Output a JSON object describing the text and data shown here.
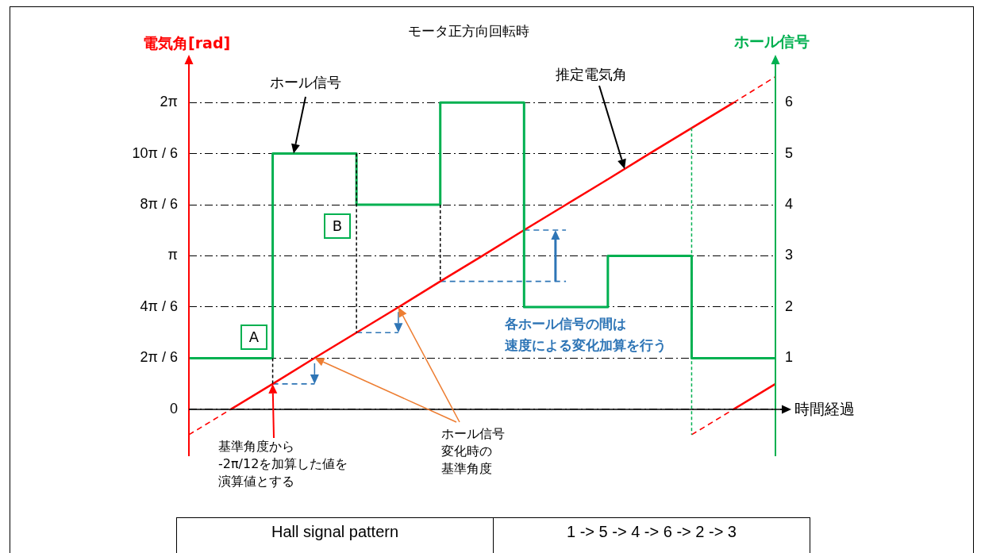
{
  "chart_data": {
    "type": "line",
    "title": "モータ正方向回転時",
    "xlabel": "時間経過",
    "ylabel": "電気角[rad]",
    "y2label": "ホール信号",
    "categories": [
      null,
      null,
      null,
      null,
      null,
      null,
      null,
      null,
      null,
      null,
      null,
      null,
      null,
      null,
      null
    ],
    "ylim": [
      -0.96,
      7.0
    ],
    "yticks": [
      0,
      {
        "value": 1.0472,
        "label": "2π / 6"
      },
      {
        "value": 2.0944,
        "label": "4π / 6"
      },
      {
        "value": 3.1416,
        "label": "π"
      },
      {
        "value": 4.1888,
        "label": "8π / 6"
      },
      {
        "value": 5.236,
        "label": "10π / 6"
      },
      {
        "value": 6.2832,
        "label": "2π"
      }
    ],
    "y2lim": [
      -0.917,
      6.685
    ],
    "y2ticks": [
      1,
      2,
      3,
      4,
      5,
      6
    ],
    "grid": "y",
    "tick_labels": "y",
    "series": [
      {
        "type": "step",
        "axis": "y2",
        "color": "#00b050",
        "values": [
          1,
          1,
          5,
          5,
          4,
          4,
          6,
          6,
          2,
          2,
          3,
          3,
          1,
          1,
          1
        ]
      },
      {
        "color": "#ff0000",
        "line_style": "solid",
        "values": [
          null,
          0,
          0.52,
          1.05,
          1.57,
          2.09,
          2.62,
          3.14,
          3.67,
          4.19,
          4.71,
          5.24,
          5.76,
          6.28,
          null
        ]
      },
      {
        "color": "#ff0000",
        "line_style": "dashed",
        "values": [
          -0.52,
          0,
          null,
          null,
          null,
          null,
          null,
          null,
          null,
          null,
          null,
          null,
          null,
          null,
          null
        ]
      },
      {
        "color": "#ff0000",
        "line_style": "dashed",
        "values": [
          null,
          null,
          null,
          null,
          null,
          null,
          null,
          null,
          null,
          null,
          null,
          null,
          null,
          6.28,
          6.81
        ]
      },
      {
        "color": "#ff0000",
        "line_style": "dashed",
        "values": [
          null,
          null,
          null,
          null,
          null,
          null,
          null,
          null,
          null,
          null,
          null,
          null,
          -0.52,
          0,
          null
        ]
      },
      {
        "color": "#ff0000",
        "line_style": "solid",
        "values": [
          null,
          null,
          null,
          null,
          null,
          null,
          null,
          null,
          null,
          null,
          null,
          null,
          null,
          0,
          0.52
        ]
      },
      {
        "color": "#2e75b6",
        "line_style": "dashed",
        "values": [
          null,
          null,
          0.52,
          0.52,
          null,
          null,
          null,
          null,
          null,
          null,
          null,
          null,
          null,
          null,
          null
        ]
      },
      {
        "color": "#2e75b6",
        "line_style": "dashed",
        "values": [
          null,
          null,
          null,
          null,
          1.57,
          1.57,
          null,
          null,
          null,
          null,
          null,
          null,
          null,
          null,
          null
        ]
      },
      {
        "color": "#2e75b6",
        "line_style": "dashed",
        "values": [
          null,
          null,
          null,
          null,
          null,
          null,
          2.62,
          2.62,
          2.62,
          2.62,
          null,
          null,
          null,
          null,
          null
        ]
      },
      {
        "color": "#2e75b6",
        "line_style": "dashed",
        "values": [
          null,
          null,
          null,
          null,
          null,
          null,
          null,
          null,
          3.67,
          3.67,
          null,
          null,
          null,
          null,
          null
        ]
      }
    ],
    "annotations": [
      "ホール信号",
      "推定電気角",
      "A",
      "B",
      "各ホール信号の間は",
      "速度による変化加算を行う",
      "ホール信号",
      "変化時の",
      "基準角度",
      "基準角度から",
      "-2π/12を加算した値を",
      "演算値とする",
      "Hall signal pattern",
      "1 -> 5 -> 4 -> 6 -> 2 -> 3"
    ]
  }
}
